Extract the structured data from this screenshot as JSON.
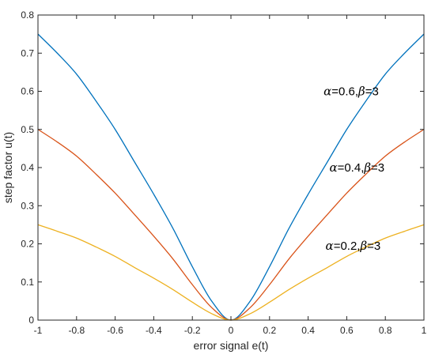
{
  "chart_data": {
    "type": "line",
    "title": "",
    "xlabel": "error signal e(t)",
    "ylabel": "step factor u(t)",
    "xlim": [
      -1,
      1
    ],
    "ylim": [
      0,
      0.8
    ],
    "x_ticks": [
      "-1",
      "-0.8",
      "-0.6",
      "-0.4",
      "-0.2",
      "0",
      "0.2",
      "0.4",
      "0.6",
      "0.8",
      "1"
    ],
    "y_ticks": [
      "0",
      "0.1",
      "0.2",
      "0.3",
      "0.4",
      "0.5",
      "0.6",
      "0.7",
      "0.8"
    ],
    "grid": false,
    "legend": "none",
    "x": [
      -1,
      -0.9,
      -0.8,
      -0.7,
      -0.6,
      -0.5,
      -0.4,
      -0.3,
      -0.2,
      -0.1,
      0,
      0.1,
      0.2,
      0.3,
      0.4,
      0.5,
      0.6,
      0.7,
      0.8,
      0.9,
      1
    ],
    "series": [
      {
        "color": "#0072BD",
        "values": [
          0.75,
          0.7,
          0.645,
          0.575,
          0.5,
          0.415,
          0.33,
          0.24,
          0.14,
          0.05,
          0,
          0.05,
          0.14,
          0.24,
          0.33,
          0.415,
          0.5,
          0.575,
          0.645,
          0.7,
          0.75
        ]
      },
      {
        "color": "#D95319",
        "values": [
          0.5,
          0.467,
          0.43,
          0.383,
          0.333,
          0.277,
          0.22,
          0.16,
          0.093,
          0.033,
          0,
          0.033,
          0.093,
          0.16,
          0.22,
          0.277,
          0.333,
          0.383,
          0.43,
          0.467,
          0.5
        ]
      },
      {
        "color": "#EDB120",
        "values": [
          0.25,
          0.233,
          0.215,
          0.192,
          0.167,
          0.138,
          0.11,
          0.08,
          0.047,
          0.017,
          0,
          0.017,
          0.047,
          0.08,
          0.11,
          0.138,
          0.167,
          0.192,
          0.215,
          0.233,
          0.25
        ]
      }
    ],
    "annotations": [
      {
        "x": 0.48,
        "y": 0.6,
        "greek1": "α",
        "mid": "=0.6,",
        "greek2": "β",
        "tail": "=3"
      },
      {
        "x": 0.51,
        "y": 0.4,
        "greek1": "α",
        "mid": "=0.4,",
        "greek2": "β",
        "tail": "=3"
      },
      {
        "x": 0.49,
        "y": 0.195,
        "greek1": "α",
        "mid": "=0.2,",
        "greek2": "β",
        "tail": "=3"
      }
    ]
  }
}
